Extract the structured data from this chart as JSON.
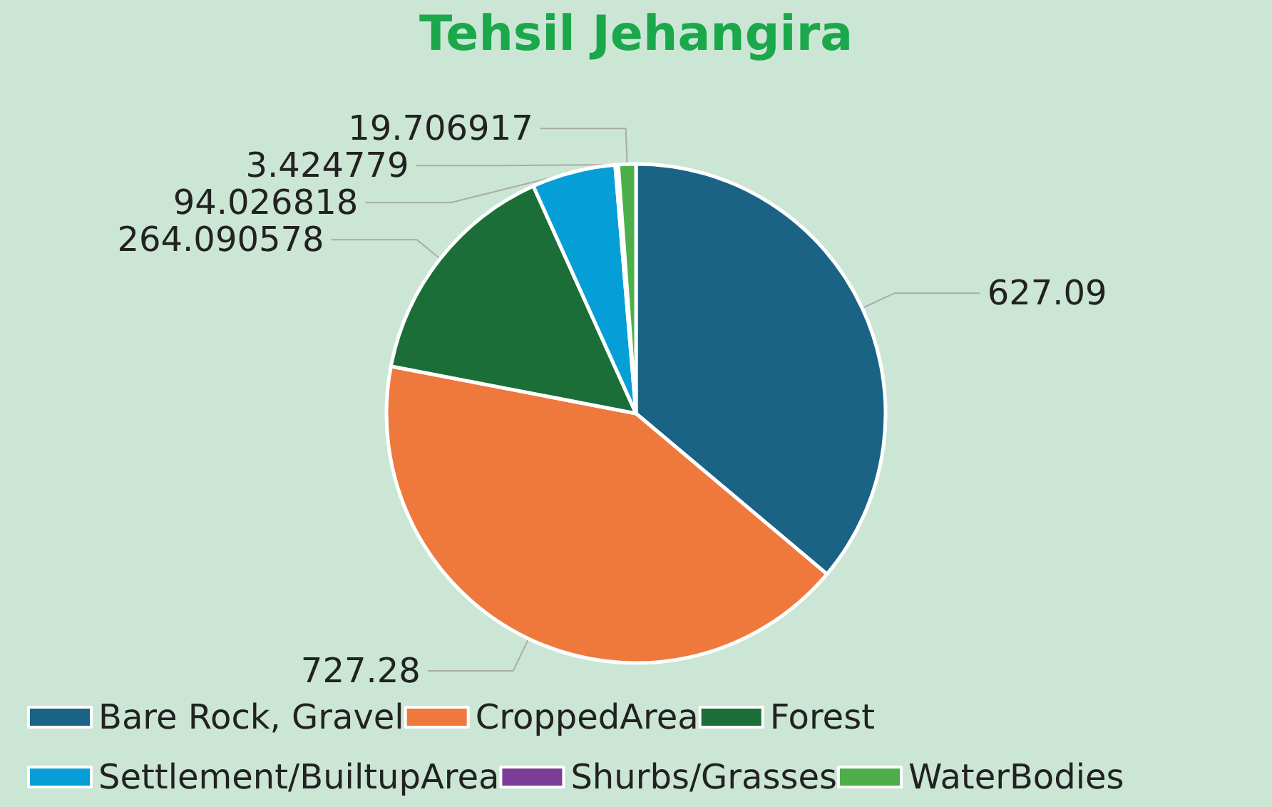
{
  "chart_data": {
    "type": "pie",
    "title": "Tehsil Jehangira",
    "categories": [
      "Bare Rock, Gravel",
      "CroppedArea",
      "Forest",
      "Settlement/BuiltupArea",
      "Shurbs/Grasses",
      "WaterBodies"
    ],
    "values": [
      627.09,
      727.28,
      264.090578,
      94.026818,
      3.424779,
      19.706917
    ],
    "colors": [
      "#1a6385",
      "#ef793d",
      "#1b6e37",
      "#069ed6",
      "#7d3c98",
      "#4caf4a"
    ],
    "data_labels": true,
    "legend": "bottom"
  }
}
